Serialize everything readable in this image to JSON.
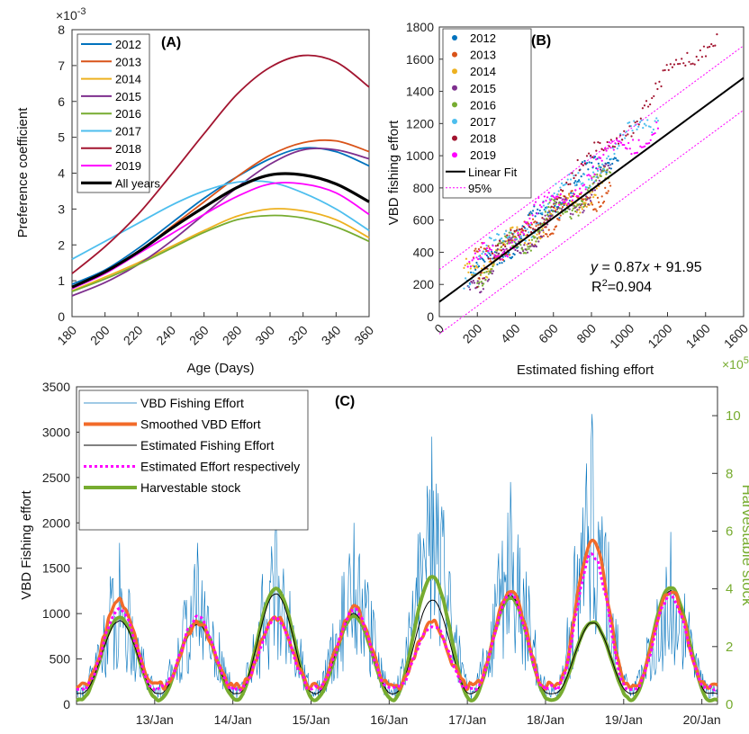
{
  "chart_data": [
    {
      "type": "line",
      "title": "(A)",
      "xlabel": "Age (Days)",
      "ylabel": "Preference coefficient",
      "y_exponent": "×10",
      "y_exponent_power": "-3",
      "xlim": [
        180,
        360
      ],
      "ylim": [
        0,
        8
      ],
      "xticks": [
        "180",
        "200",
        "220",
        "240",
        "260",
        "280",
        "300",
        "320",
        "340",
        "360"
      ],
      "yticks": [
        "0",
        "1",
        "2",
        "3",
        "4",
        "5",
        "6",
        "7",
        "8"
      ],
      "legend_position": "top-left",
      "grid": false,
      "x": [
        180,
        200,
        220,
        240,
        260,
        280,
        300,
        320,
        340,
        360
      ],
      "series": [
        {
          "name": "2012",
          "color": "#0072BD",
          "values": [
            0.9,
            1.3,
            1.9,
            2.6,
            3.3,
            3.9,
            4.4,
            4.7,
            4.6,
            4.2
          ]
        },
        {
          "name": "2013",
          "color": "#D95319",
          "values": [
            0.8,
            1.25,
            1.8,
            2.5,
            3.2,
            3.9,
            4.5,
            4.85,
            4.9,
            4.6
          ]
        },
        {
          "name": "2014",
          "color": "#EDB120",
          "values": [
            0.72,
            1.1,
            1.5,
            1.95,
            2.4,
            2.8,
            3.0,
            2.95,
            2.7,
            2.2
          ]
        },
        {
          "name": "2015",
          "color": "#7E2F8E",
          "values": [
            0.58,
            0.95,
            1.45,
            2.1,
            2.85,
            3.6,
            4.25,
            4.65,
            4.65,
            4.4
          ]
        },
        {
          "name": "2016",
          "color": "#77AC30",
          "values": [
            0.7,
            1.05,
            1.45,
            1.9,
            2.35,
            2.7,
            2.82,
            2.75,
            2.5,
            2.1
          ]
        },
        {
          "name": "2017",
          "color": "#4DBEEE",
          "values": [
            1.6,
            2.1,
            2.6,
            3.1,
            3.5,
            3.75,
            3.75,
            3.45,
            3.0,
            2.4
          ]
        },
        {
          "name": "2018",
          "color": "#A2142F",
          "values": [
            1.2,
            1.95,
            2.85,
            3.95,
            5.1,
            6.2,
            6.95,
            7.28,
            7.1,
            6.4
          ]
        },
        {
          "name": "2019",
          "color": "#FF00FF",
          "values": [
            0.78,
            1.2,
            1.75,
            2.3,
            2.85,
            3.35,
            3.7,
            3.7,
            3.45,
            2.85
          ]
        },
        {
          "name": "All years",
          "color": "#000000",
          "values": [
            0.82,
            1.25,
            1.8,
            2.45,
            3.05,
            3.6,
            3.95,
            3.95,
            3.7,
            3.2
          ]
        }
      ]
    },
    {
      "type": "scatter",
      "title": "(B)",
      "xlabel": "Estimated fishing effort",
      "ylabel": "VBD fishing effort",
      "xlim": [
        0,
        1600
      ],
      "ylim": [
        0,
        1800
      ],
      "xticks": [
        "0",
        "200",
        "400",
        "600",
        "800",
        "1000",
        "1200",
        "1400",
        "1600"
      ],
      "yticks": [
        "0",
        "200",
        "400",
        "600",
        "800",
        "1000",
        "1200",
        "1400",
        "1600",
        "1800"
      ],
      "legend_position": "top-left",
      "grid": false,
      "equation": "y = 0.87x + 91.95",
      "equation_var_y": "y",
      "equation_rest": " = 0.87",
      "equation_var_x": "x",
      "equation_tail": " + 91.95",
      "r2_label": "R",
      "r2_sup": "2",
      "r2_value": "=0.904",
      "fit": {
        "name": "Linear Fit",
        "color": "#000000",
        "slope": 0.87,
        "intercept": 91.95
      },
      "band": {
        "name": "95%",
        "color": "#FF00FF",
        "offset": 200
      },
      "series": [
        {
          "name": "2012",
          "color": "#0072BD",
          "x_range": [
            160,
            940
          ],
          "y_start": 230,
          "y_end": 1050
        },
        {
          "name": "2013",
          "color": "#D95319",
          "x_range": [
            180,
            900
          ],
          "y_start": 330,
          "y_end": 820
        },
        {
          "name": "2014",
          "color": "#EDB120",
          "x_range": [
            130,
            880
          ],
          "y_start": 260,
          "y_end": 850
        },
        {
          "name": "2015",
          "color": "#7E2F8E",
          "x_range": [
            150,
            900
          ],
          "y_start": 200,
          "y_end": 880
        },
        {
          "name": "2016",
          "color": "#77AC30",
          "x_range": [
            200,
            900
          ],
          "y_start": 280,
          "y_end": 880
        },
        {
          "name": "2017",
          "color": "#4DBEEE",
          "x_range": [
            130,
            1150
          ],
          "y_start": 260,
          "y_end": 1250
        },
        {
          "name": "2018",
          "color": "#A2142F",
          "x_range": [
            200,
            1460
          ],
          "y_start": 220,
          "y_end": 1780
        },
        {
          "name": "2019",
          "color": "#FF00FF",
          "x_range": [
            150,
            1150
          ],
          "y_start": 280,
          "y_end": 1220
        }
      ]
    },
    {
      "type": "line",
      "title": "(C)",
      "ylabel": "VBD Fishing effort",
      "y2label": "Harvestable stock",
      "y2_exponent": "×10",
      "y2_exponent_power": "5",
      "ylim": [
        0,
        3500
      ],
      "y2lim": [
        0,
        11
      ],
      "yticks": [
        "0",
        "500",
        "1000",
        "1500",
        "2000",
        "2500",
        "3000",
        "3500"
      ],
      "y2ticks": [
        "0",
        "2",
        "4",
        "6",
        "8",
        "10"
      ],
      "xticks": [
        "13/Jan",
        "14/Jan",
        "15/Jan",
        "16/Jan",
        "17/Jan",
        "18/Jan",
        "19/Jan",
        "20/Jan"
      ],
      "legend_position": "top-left",
      "grid": false,
      "peaks_day": [
        12.55,
        13.55,
        14.55,
        15.55,
        16.55,
        17.55,
        18.6,
        19.6
      ],
      "series": [
        {
          "name": "VBD Fishing Effort",
          "color": "#0072BD",
          "axis": "left",
          "peak_values": [
            1780,
            1780,
            2100,
            2000,
            2950,
            2450,
            3200,
            1900
          ]
        },
        {
          "name": "Smoothed VBD Effort",
          "color": "#F26B2A",
          "axis": "left",
          "peak_values": [
            1130,
            900,
            960,
            1050,
            900,
            1250,
            1780,
            1250
          ]
        },
        {
          "name": "Estimated Fishing Effort",
          "color": "#000000",
          "axis": "left",
          "peak_values": [
            920,
            880,
            1220,
            1000,
            1150,
            1200,
            900,
            1250
          ]
        },
        {
          "name": "Estimated Effort respectively",
          "color": "#FF00FF",
          "axis": "left",
          "peak_values": [
            1050,
            950,
            950,
            1030,
            880,
            1200,
            1650,
            1200
          ]
        },
        {
          "name": "Harvestable stock",
          "color": "#77AC30",
          "axis": "right",
          "peak_values": [
            3.0,
            2.85,
            4.0,
            3.05,
            4.4,
            3.7,
            2.85,
            4.05
          ]
        }
      ]
    }
  ]
}
